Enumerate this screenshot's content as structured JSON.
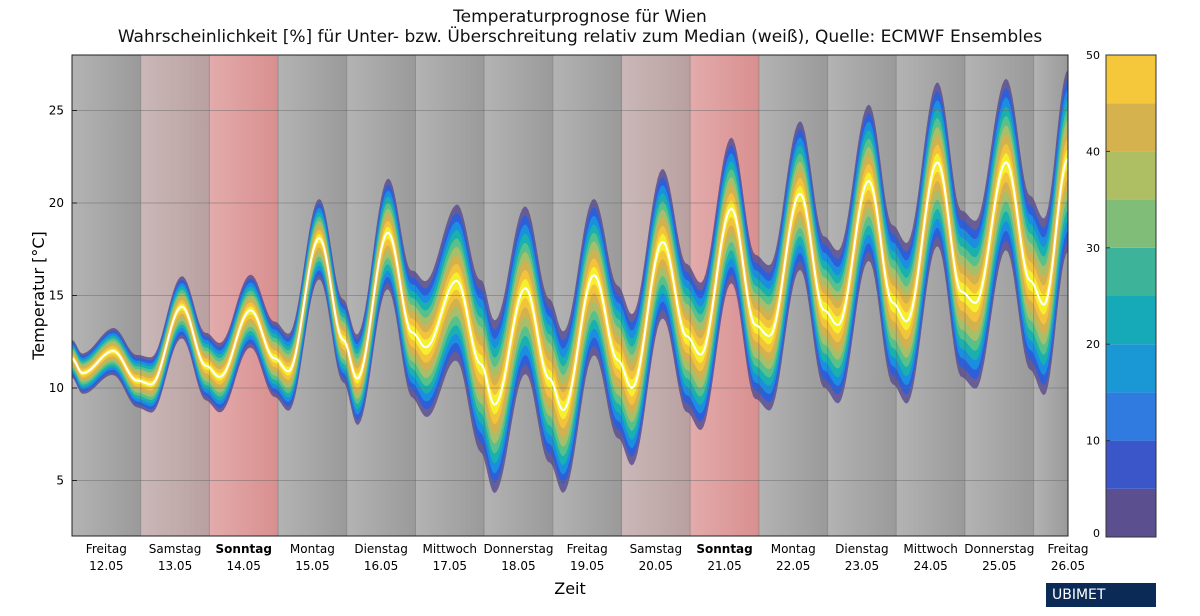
{
  "title": "Temperaturprognose für Wien",
  "subtitle": "Wahrscheinlichkeit [%] für Unter- bzw. Überschreitung relativ zum Median (weiß), Quelle: ECMWF Ensembles",
  "brand": "UBIMET",
  "colors": {
    "weekday_shade": "#9a9a9a",
    "saturday_shade": "#b9a0a0",
    "sunday_shade": "#d98f8f",
    "median_line": "#ffffff",
    "bands": [
      "#5c4f8f",
      "#2f5fd8",
      "#1a8fe0",
      "#1ab0b0",
      "#58c08a",
      "#a6bf6a",
      "#d3b14f",
      "#f3c43b",
      "#f6ef2e"
    ]
  },
  "chart_data": {
    "type": "area",
    "title": "Temperaturprognose für Wien",
    "subtitle": "Wahrscheinlichkeit [%] für Unter- bzw. Überschreitung relativ zum Median (weiß), Quelle: ECMWF Ensembles",
    "xlabel": "Zeit",
    "ylabel": "Temperatur [°C]",
    "ylim": [
      2,
      28
    ],
    "yticks": [
      5,
      10,
      15,
      20,
      25
    ],
    "grid": true,
    "days": [
      {
        "name": "Freitag",
        "date": "12.05",
        "type": "weekday"
      },
      {
        "name": "Samstag",
        "date": "13.05",
        "type": "saturday"
      },
      {
        "name": "Sonntag",
        "date": "14.05",
        "type": "sunday"
      },
      {
        "name": "Montag",
        "date": "15.05",
        "type": "weekday"
      },
      {
        "name": "Dienstag",
        "date": "16.05",
        "type": "weekday"
      },
      {
        "name": "Mittwoch",
        "date": "17.05",
        "type": "weekday"
      },
      {
        "name": "Donnerstag",
        "date": "18.05",
        "type": "weekday"
      },
      {
        "name": "Freitag",
        "date": "19.05",
        "type": "weekday"
      },
      {
        "name": "Samstag",
        "date": "20.05",
        "type": "saturday"
      },
      {
        "name": "Sonntag",
        "date": "21.05",
        "type": "sunday"
      },
      {
        "name": "Montag",
        "date": "22.05",
        "type": "weekday"
      },
      {
        "name": "Dienstag",
        "date": "23.05",
        "type": "weekday"
      },
      {
        "name": "Mittwoch",
        "date": "24.05",
        "type": "weekday"
      },
      {
        "name": "Donnerstag",
        "date": "25.05",
        "type": "weekday"
      },
      {
        "name": "Freitag",
        "date": "26.05",
        "type": "weekday"
      }
    ],
    "median": {
      "x_days": [
        0.0,
        0.15,
        0.6,
        0.95,
        1.15,
        1.6,
        1.95,
        2.15,
        2.6,
        2.95,
        3.15,
        3.6,
        3.95,
        4.15,
        4.6,
        4.95,
        5.15,
        5.6,
        5.95,
        6.15,
        6.6,
        6.95,
        7.15,
        7.6,
        7.95,
        8.15,
        8.6,
        8.95,
        9.15,
        9.6,
        9.95,
        10.15,
        10.6,
        10.95,
        11.15,
        11.6,
        11.95,
        12.15,
        12.6,
        12.95,
        13.15,
        13.6,
        13.95,
        14.15,
        14.5
      ],
      "y": [
        11.6,
        10.8,
        12.0,
        10.4,
        10.2,
        14.4,
        11.2,
        10.6,
        14.2,
        11.6,
        10.9,
        18.1,
        12.6,
        10.5,
        18.4,
        13.0,
        12.2,
        15.8,
        11.3,
        9.1,
        15.4,
        10.5,
        8.8,
        16.1,
        11.5,
        10.0,
        17.9,
        12.8,
        11.8,
        19.7,
        13.4,
        12.8,
        20.5,
        14.2,
        13.4,
        21.2,
        14.6,
        13.6,
        22.2,
        15.2,
        14.6,
        22.2,
        15.8,
        14.5,
        22.4
      ]
    },
    "spread": {
      "x_days": [
        0.0,
        2.0,
        4.0,
        6.0,
        8.0,
        10.0,
        12.0,
        14.0,
        14.5
      ],
      "half_range_min_max": [
        1.0,
        1.8,
        2.2,
        4.6,
        4.0,
        3.8,
        4.2,
        4.6,
        4.8
      ]
    },
    "colorbar": {
      "label_ticks": [
        0,
        10,
        20,
        30,
        40,
        50
      ],
      "levels": [
        0,
        5,
        10,
        15,
        20,
        25,
        30,
        35,
        40,
        45,
        50
      ]
    }
  }
}
